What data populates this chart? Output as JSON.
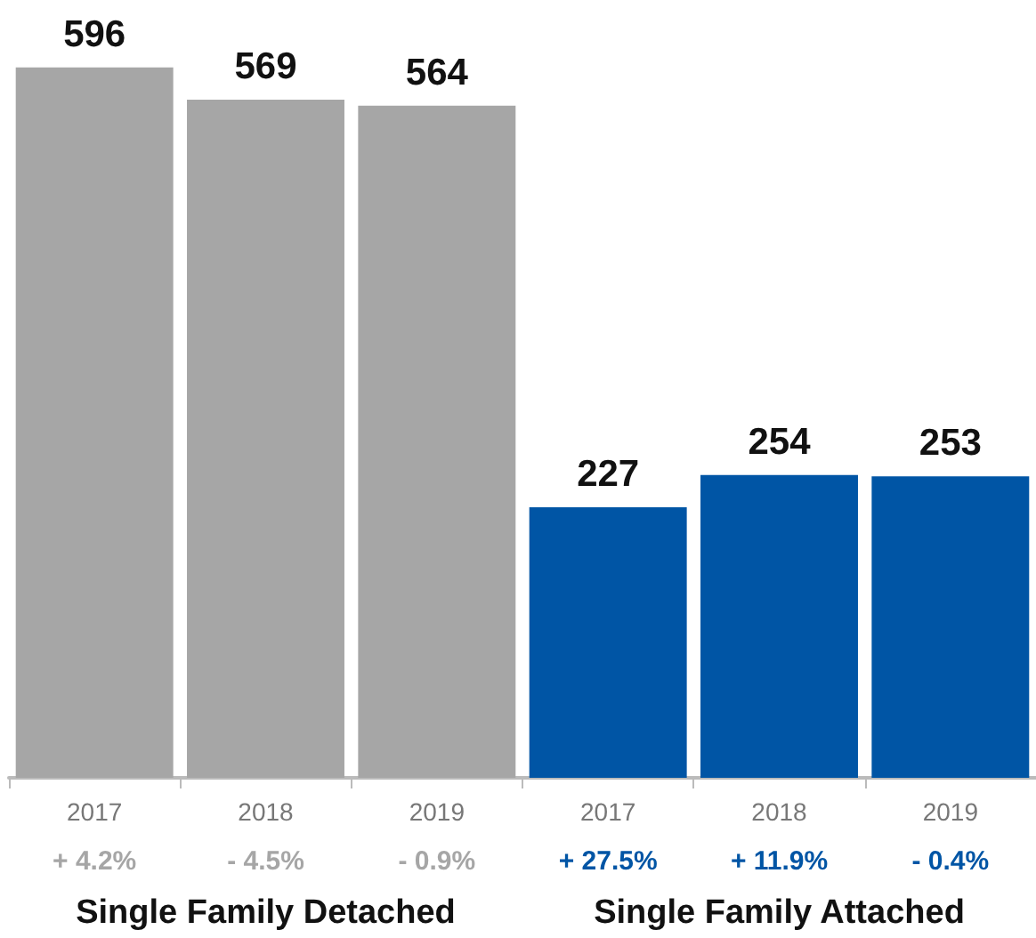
{
  "chart_data": {
    "type": "bar",
    "categories": [
      "2017",
      "2018",
      "2019",
      "2017",
      "2018",
      "2019"
    ],
    "values": [
      596,
      569,
      564,
      227,
      254,
      253
    ],
    "colors": [
      "#a6a6a6",
      "#a6a6a6",
      "#a6a6a6",
      "#0055a5",
      "#0055a5",
      "#0055a5"
    ],
    "data_labels": true,
    "annotations": [
      "+ 4.2%",
      "- 4.5%",
      "- 0.9%",
      "+ 27.5%",
      "+ 11.9%",
      "- 0.4%",
      "Single Family Detached",
      "Single Family Attached"
    ]
  }
}
